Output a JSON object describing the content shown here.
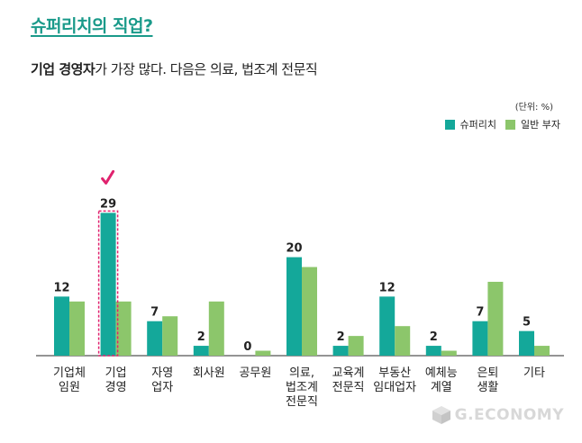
{
  "header": {
    "title": "슈퍼리치의 직업?",
    "subtitle_bold": "기업 경영자",
    "subtitle_rest": "가 가장 많다. 다음은 의료, 법조계 전문직"
  },
  "unit": "(단위: %)",
  "colors": {
    "teal": "#14a89a",
    "green": "#8cc66b",
    "highlight": "#e0226e",
    "axis": "#555555"
  },
  "watermark": "G.ECONOMY",
  "chart_data": {
    "type": "bar",
    "categories": [
      [
        "기업체",
        "임원"
      ],
      [
        "기업",
        "경영"
      ],
      [
        "자영",
        "업자"
      ],
      [
        "회사원"
      ],
      [
        "공무원"
      ],
      [
        "의료,",
        "법조계",
        "전문직"
      ],
      [
        "교육계",
        "전문직"
      ],
      [
        "부동산",
        "임대업자"
      ],
      [
        "예체능",
        "계열"
      ],
      [
        "은퇴",
        "생활"
      ],
      [
        "기타"
      ]
    ],
    "series": [
      {
        "name": "슈퍼리치",
        "values": [
          12,
          29,
          7,
          2,
          0,
          20,
          2,
          12,
          2,
          7,
          5
        ]
      },
      {
        "name": "일반 부자",
        "values": [
          11,
          11,
          8,
          11,
          1,
          18,
          4,
          6,
          1,
          15,
          2
        ]
      }
    ],
    "labels": [
      "12",
      "29",
      "7",
      "2",
      "0",
      "20",
      "2",
      "12",
      "2",
      "7",
      "5"
    ],
    "highlight_index": 1,
    "ylim": [
      0,
      32
    ],
    "legend_position": "top-right"
  }
}
